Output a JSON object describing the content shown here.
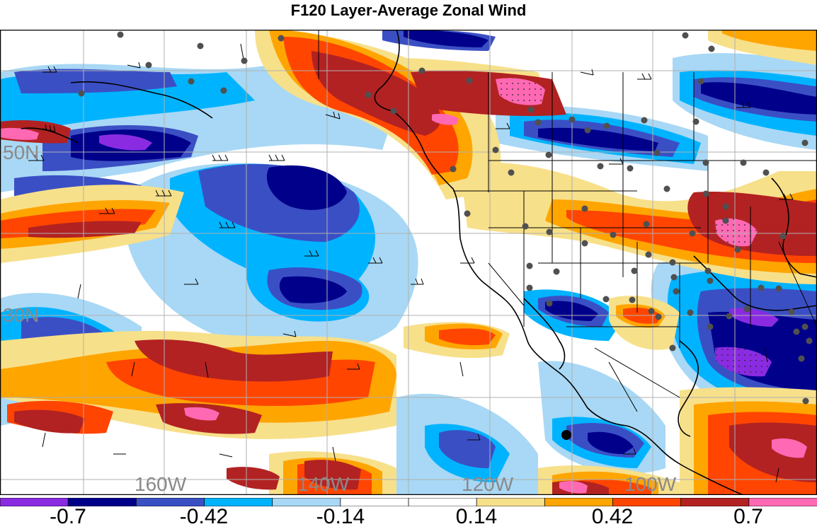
{
  "title": "F120 Layer-Average Zonal Wind",
  "map": {
    "lat_labels": [
      "50N",
      "30N"
    ],
    "lon_labels": [
      "160W",
      "140W",
      "120W",
      "100W"
    ]
  },
  "colorbar": {
    "tick_labels": [
      "-0.7",
      "-0.42",
      "-0.14",
      "0.14",
      "0.42",
      "0.7"
    ],
    "colors": [
      "#8a2be2",
      "#00008b",
      "#3b4fc4",
      "#00b3ff",
      "#a8d8f5",
      "#ffffff",
      "#ffffff",
      "#f7e08a",
      "#ffa500",
      "#ff4500",
      "#b22222",
      "#ff69b4"
    ]
  }
}
